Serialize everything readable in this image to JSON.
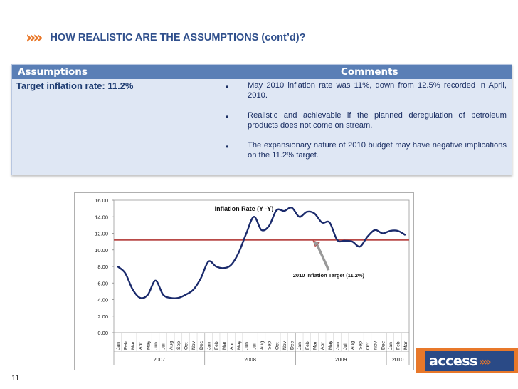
{
  "slide": {
    "chevrons": "»»",
    "title": "HOW REALISTIC ARE THE ASSUMPTIONS (cont’d)?",
    "page_number": "11"
  },
  "table": {
    "header_left": "Assumptions",
    "header_right": "Comments",
    "assumption": "Target inflation rate: 11.2%",
    "bullet_symbol": "•",
    "comments": [
      "May 2010 inflation rate was 11%, down from 12.5% recorded in April, 2010.",
      "Realistic and achievable if the planned deregulation of petroleum products does not come on stream.",
      "The expansionary nature of 2010 budget may have negative implications on the 11.2% target."
    ]
  },
  "logo": {
    "text": "access",
    "mark": "»»",
    "colors": {
      "bg": "#e8782a",
      "panel": "#2a4a86"
    }
  },
  "chart_data": {
    "type": "line",
    "title": "Inflation Rate (Y -Y)",
    "ylim": [
      0,
      16
    ],
    "yticks": [
      "16.00",
      "14.00",
      "12.00",
      "10.00",
      "8.00",
      "6.00",
      "4.00",
      "2.00",
      "0.00"
    ],
    "x_months": [
      "Jan",
      "Feb",
      "Mar",
      "Apr",
      "May",
      "Jun",
      "Jul",
      "Aug",
      "Sep",
      "Oct",
      "Nov",
      "Dec",
      "Jan",
      "Feb",
      "Mar",
      "Apr",
      "May",
      "Jun",
      "Jul",
      "Aug",
      "Sep",
      "Oct",
      "Nov",
      "Dec",
      "Jan",
      "Feb",
      "Mar",
      "Apr",
      "May",
      "Jun",
      "Jul",
      "Aug",
      "Sep",
      "Oct",
      "Nov",
      "Dec",
      "Jan",
      "Feb",
      "Mar"
    ],
    "years": [
      {
        "label": "2007",
        "start": 0,
        "count": 12
      },
      {
        "label": "2008",
        "start": 12,
        "count": 12
      },
      {
        "label": "2009",
        "start": 24,
        "count": 12
      },
      {
        "label": "2010",
        "start": 36,
        "count": 3
      }
    ],
    "series": [
      {
        "values": [
          8.0,
          7.2,
          5.2,
          4.2,
          4.6,
          6.3,
          4.6,
          4.2,
          4.2,
          4.6,
          5.2,
          6.6,
          8.6,
          8.0,
          7.8,
          8.2,
          9.7,
          12.0,
          14.0,
          12.4,
          12.9,
          14.8,
          14.7,
          15.1,
          14.0,
          14.6,
          14.4,
          13.3,
          13.3,
          11.2,
          11.1,
          11.0,
          10.4,
          11.6,
          12.4,
          12.0,
          12.3,
          12.3,
          11.8
        ],
        "color": "#1a2a6c"
      }
    ],
    "target_line": {
      "value": 11.2,
      "color": "#b94a48"
    },
    "annotation": "2010 Inflation Target (11.2%)"
  }
}
